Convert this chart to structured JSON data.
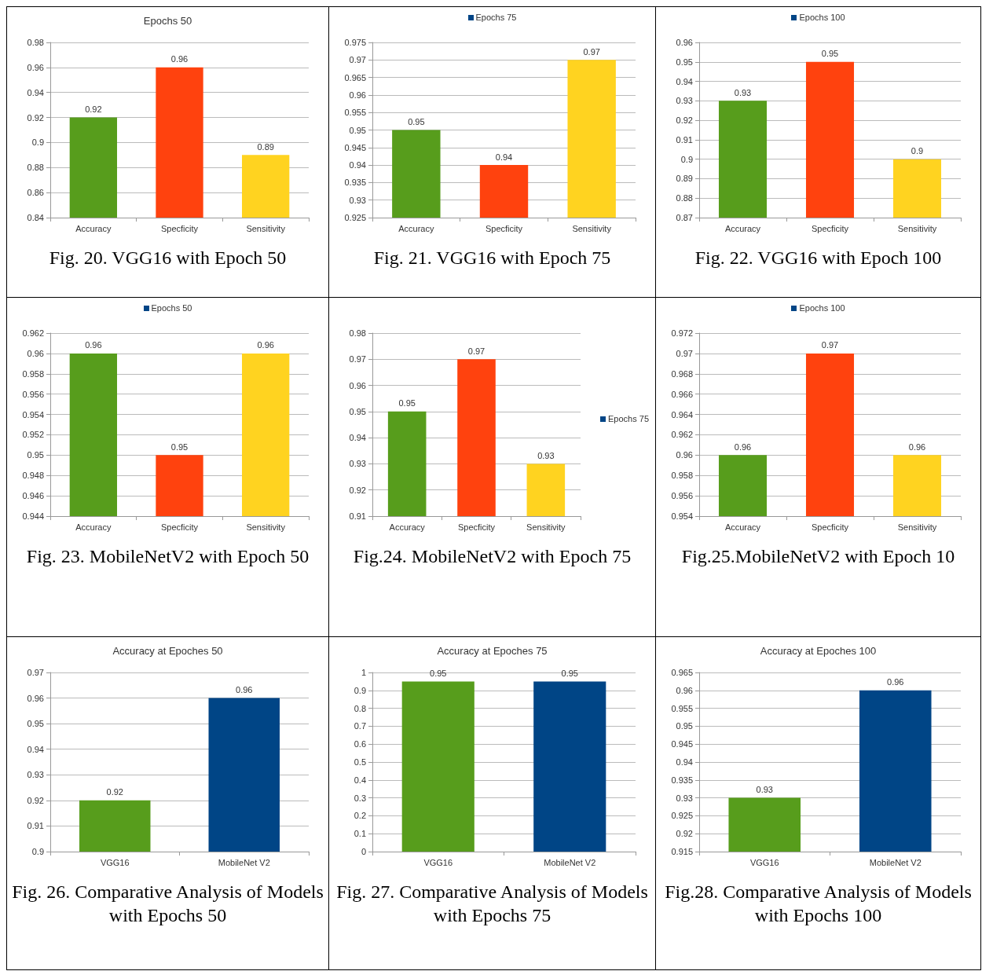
{
  "chart_data": [
    {
      "type": "bar",
      "title": "Epochs 50",
      "categories": [
        "Accuracy",
        "Specficity",
        "Sensitivity"
      ],
      "series": [
        {
          "color": "#004586",
          "colors": [
            "#579d1c",
            "#ff420e",
            "#ffd320"
          ],
          "values": [
            0.92,
            0.96,
            0.89
          ]
        }
      ],
      "ylim": [
        0.84,
        0.98
      ],
      "yticks": [
        0.84,
        0.86,
        0.88,
        0.9,
        0.92,
        0.94,
        0.96,
        0.98
      ],
      "grid": "y",
      "legend": false,
      "data_labels": true,
      "annotations": [
        "Fig. 20. VGG16 with Epoch 50"
      ]
    },
    {
      "type": "bar",
      "categories": [
        "Accuracy",
        "Specficity",
        "Sensitivity"
      ],
      "series": [
        {
          "name": "Epochs 75",
          "color": "#004586",
          "colors": [
            "#579d1c",
            "#ff420e",
            "#ffd320"
          ],
          "values": [
            0.95,
            0.94,
            0.97
          ]
        }
      ],
      "ylim": [
        0.925,
        0.975
      ],
      "yticks": [
        0.925,
        0.93,
        0.935,
        0.94,
        0.945,
        0.95,
        0.955,
        0.96,
        0.965,
        0.97,
        0.975
      ],
      "grid": "y",
      "legend": "top",
      "data_labels": true,
      "annotations": [
        "Fig. 21. VGG16 with Epoch 75"
      ]
    },
    {
      "type": "bar",
      "categories": [
        "Accuracy",
        "Specficity",
        "Sensitivity"
      ],
      "series": [
        {
          "name": "Epochs 100",
          "color": "#004586",
          "colors": [
            "#579d1c",
            "#ff420e",
            "#ffd320"
          ],
          "values": [
            0.93,
            0.95,
            0.9
          ]
        }
      ],
      "ylim": [
        0.87,
        0.96
      ],
      "yticks": [
        0.87,
        0.88,
        0.89,
        0.9,
        0.91,
        0.92,
        0.93,
        0.94,
        0.95,
        0.96
      ],
      "grid": "y",
      "legend": "top",
      "data_labels": true,
      "annotations": [
        "Fig. 22.  VGG16 with Epoch 100"
      ]
    },
    {
      "type": "bar",
      "categories": [
        "Accuracy",
        "Specficity",
        "Sensitivity"
      ],
      "series": [
        {
          "name": "Epochs 50",
          "color": "#004586",
          "colors": [
            "#579d1c",
            "#ff420e",
            "#ffd320"
          ],
          "values": [
            0.96,
            0.95,
            0.96
          ]
        }
      ],
      "ylim": [
        0.944,
        0.962
      ],
      "yticks": [
        0.944,
        0.946,
        0.948,
        0.95,
        0.952,
        0.954,
        0.956,
        0.958,
        0.96,
        0.962
      ],
      "grid": "y",
      "legend": "top",
      "data_labels": true,
      "annotations": [
        "Fig. 23. MobileNetV2 with Epoch 50"
      ]
    },
    {
      "type": "bar",
      "categories": [
        "Accuracy",
        "Specficity",
        "Sensitivity"
      ],
      "series": [
        {
          "name": "Epochs 75",
          "color": "#004586",
          "colors": [
            "#579d1c",
            "#ff420e",
            "#ffd320"
          ],
          "values": [
            0.95,
            0.97,
            0.93
          ]
        }
      ],
      "ylim": [
        0.91,
        0.98
      ],
      "yticks": [
        0.91,
        0.92,
        0.93,
        0.94,
        0.95,
        0.96,
        0.97,
        0.98
      ],
      "grid": "y",
      "legend": "right",
      "data_labels": true,
      "annotations": [
        "Fig.24. MobileNetV2 with Epoch 75"
      ]
    },
    {
      "type": "bar",
      "categories": [
        "Accuracy",
        "Specficity",
        "Sensitivity"
      ],
      "series": [
        {
          "name": "Epochs 100",
          "color": "#004586",
          "colors": [
            "#579d1c",
            "#ff420e",
            "#ffd320"
          ],
          "values": [
            0.96,
            0.97,
            0.96
          ]
        }
      ],
      "ylim": [
        0.954,
        0.972
      ],
      "yticks": [
        0.954,
        0.956,
        0.958,
        0.96,
        0.962,
        0.964,
        0.966,
        0.968,
        0.97,
        0.972
      ],
      "grid": "y",
      "legend": "top",
      "data_labels": true,
      "annotations": [
        "Fig.25.MobileNetV2 with Epoch 10"
      ]
    },
    {
      "type": "bar",
      "title": "Accuracy at Epoches 50",
      "categories": [
        "VGG16",
        "MobileNet V2"
      ],
      "series": [
        {
          "color": "#579d1c",
          "colors": [
            "#579d1c",
            "#004586"
          ],
          "values": [
            0.92,
            0.96
          ]
        }
      ],
      "ylim": [
        0.9,
        0.97
      ],
      "yticks": [
        0.9,
        0.91,
        0.92,
        0.93,
        0.94,
        0.95,
        0.96,
        0.97
      ],
      "grid": "y",
      "legend": false,
      "data_labels": true,
      "annotations": [
        "Fig. 26. Comparative Analysis of Models with Epochs 50"
      ]
    },
    {
      "type": "bar",
      "title": "Accuracy at Epoches 75",
      "categories": [
        "VGG16",
        "MobileNet V2"
      ],
      "series": [
        {
          "color": "#579d1c",
          "colors": [
            "#579d1c",
            "#004586"
          ],
          "values": [
            0.95,
            0.95
          ]
        }
      ],
      "ylim": [
        0,
        1
      ],
      "yticks": [
        0,
        0.1,
        0.2,
        0.3,
        0.4,
        0.5,
        0.6,
        0.7,
        0.8,
        0.9,
        1
      ],
      "grid": "y",
      "legend": false,
      "data_labels": true,
      "annotations": [
        "Fig. 27. Comparative Analysis of Models with Epochs 75"
      ]
    },
    {
      "type": "bar",
      "title": "Accuracy at Epoches 100",
      "categories": [
        "VGG16",
        "MobileNet V2"
      ],
      "series": [
        {
          "color": "#579d1c",
          "colors": [
            "#579d1c",
            "#004586"
          ],
          "values": [
            0.93,
            0.96
          ]
        }
      ],
      "ylim": [
        0.915,
        0.965
      ],
      "yticks": [
        0.915,
        0.92,
        0.925,
        0.93,
        0.935,
        0.94,
        0.945,
        0.95,
        0.955,
        0.96,
        0.965
      ],
      "grid": "y",
      "legend": false,
      "data_labels": true,
      "annotations": [
        "Fig.28. Comparative Analysis of Models with Epochs 100"
      ]
    }
  ]
}
